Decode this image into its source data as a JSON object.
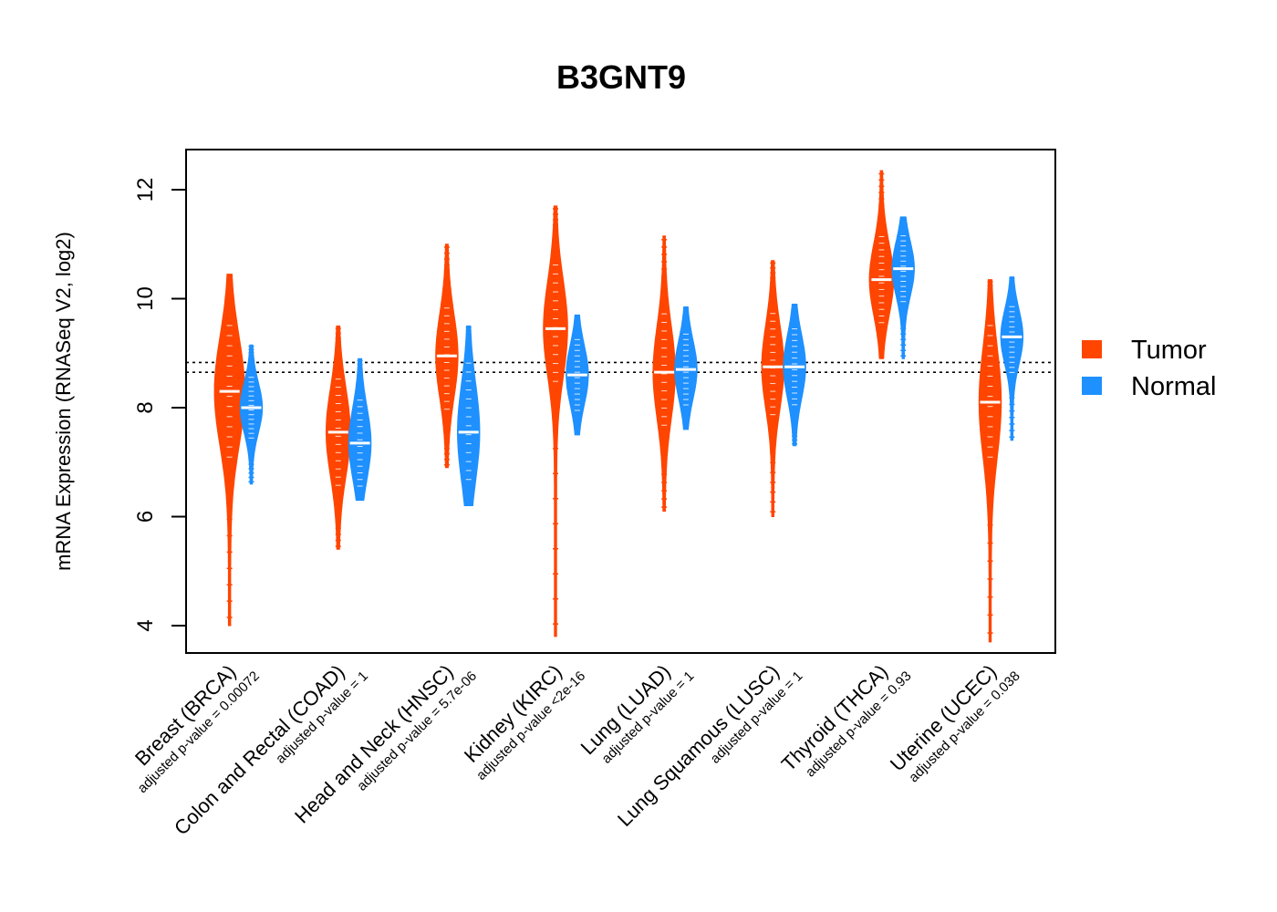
{
  "chart_data": {
    "type": "violin",
    "title": "B3GNT9",
    "ylabel": "mRNA Expression (RNASeq V2, log2)",
    "ylim": [
      3.5,
      12.7
    ],
    "yticks": [
      4,
      6,
      8,
      10,
      12
    ],
    "reference_lines": [
      8.65,
      8.83
    ],
    "legend": {
      "placement": "right",
      "entries": [
        {
          "name": "Tumor",
          "color": "#FF4500"
        },
        {
          "name": "Normal",
          "color": "#1E90FF"
        }
      ]
    },
    "categories": [
      {
        "label": "Breast (BRCA)",
        "pvalue": "adjusted p-value = 0.00072",
        "tumor": {
          "min": 4.0,
          "max": 10.45,
          "median": 8.3,
          "core_low": 7.0,
          "core_high": 9.6,
          "spread": 1.4
        },
        "normal": {
          "min": 6.6,
          "max": 9.15,
          "median": 8.0,
          "core_low": 7.4,
          "core_high": 8.6,
          "spread": 1.0
        }
      },
      {
        "label": "Colon and Rectal (COAD)",
        "pvalue": "adjusted p-value = 1",
        "tumor": {
          "min": 5.4,
          "max": 9.5,
          "median": 7.55,
          "core_low": 6.5,
          "core_high": 8.6,
          "spread": 1.1
        },
        "normal": {
          "min": 6.3,
          "max": 8.9,
          "median": 7.35,
          "core_low": 6.5,
          "core_high": 8.2,
          "spread": 1.0
        }
      },
      {
        "label": "Head and Neck (HNSC)",
        "pvalue": "adjusted p-value = 5.7e-06",
        "tumor": {
          "min": 6.9,
          "max": 11.0,
          "median": 8.95,
          "core_low": 7.9,
          "core_high": 9.9,
          "spread": 1.0
        },
        "normal": {
          "min": 6.2,
          "max": 9.5,
          "median": 7.55,
          "core_low": 6.6,
          "core_high": 8.9,
          "spread": 1.0
        }
      },
      {
        "label": "Kidney (KIRC)",
        "pvalue": "adjusted p-value <2e-16",
        "tumor": {
          "min": 3.8,
          "max": 11.7,
          "median": 9.45,
          "core_low": 8.4,
          "core_high": 10.7,
          "spread": 1.1
        },
        "normal": {
          "min": 7.5,
          "max": 9.7,
          "median": 8.6,
          "core_low": 7.9,
          "core_high": 9.3,
          "spread": 1.0
        }
      },
      {
        "label": "Lung (LUAD)",
        "pvalue": "adjusted p-value = 1",
        "tumor": {
          "min": 6.1,
          "max": 11.15,
          "median": 8.65,
          "core_low": 7.6,
          "core_high": 9.8,
          "spread": 1.0
        },
        "normal": {
          "min": 7.6,
          "max": 9.85,
          "median": 8.7,
          "core_low": 8.0,
          "core_high": 9.4,
          "spread": 1.0
        }
      },
      {
        "label": "Lung Squamous (LUSC)",
        "pvalue": "adjusted p-value = 1",
        "tumor": {
          "min": 6.0,
          "max": 10.7,
          "median": 8.75,
          "core_low": 7.8,
          "core_high": 9.8,
          "spread": 1.0
        },
        "normal": {
          "min": 7.3,
          "max": 9.9,
          "median": 8.75,
          "core_low": 8.0,
          "core_high": 9.5,
          "spread": 1.0
        }
      },
      {
        "label": "Thyroid (THCA)",
        "pvalue": "adjusted p-value = 0.93",
        "tumor": {
          "min": 8.9,
          "max": 12.35,
          "median": 10.35,
          "core_low": 9.5,
          "core_high": 11.2,
          "spread": 1.1
        },
        "normal": {
          "min": 8.9,
          "max": 11.5,
          "median": 10.55,
          "core_low": 9.9,
          "core_high": 11.2,
          "spread": 1.0
        }
      },
      {
        "label": "Uterine (UCEC)",
        "pvalue": "adjusted p-value = 0.038",
        "tumor": {
          "min": 3.7,
          "max": 10.35,
          "median": 8.1,
          "core_low": 7.0,
          "core_high": 9.6,
          "spread": 1.0
        },
        "normal": {
          "min": 7.4,
          "max": 10.4,
          "median": 9.3,
          "core_low": 8.6,
          "core_high": 9.9,
          "spread": 1.0
        }
      }
    ]
  }
}
